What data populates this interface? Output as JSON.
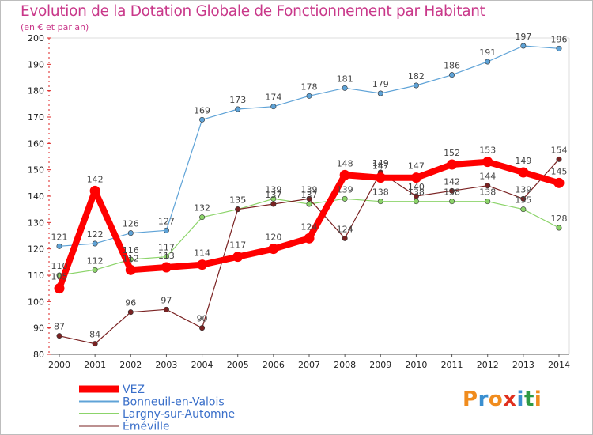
{
  "title": "Evolution de la Dotation Globale de Fonctionnement par Habitant",
  "subtitle": "(en € et par an)",
  "logo": {
    "text": "Proxiti",
    "colors": [
      "#f08c1e",
      "#3a8fd0",
      "#f08c1e",
      "#e0301e",
      "#3a8fd0",
      "#2f9a45",
      "#f08c1e"
    ]
  },
  "chart_data": {
    "type": "line",
    "title": "Evolution de la Dotation Globale de Fonctionnement par Habitant",
    "ylabel": "(en € et par an)",
    "xlabel": "",
    "ylim": [
      80,
      200
    ],
    "yticks": [
      80,
      90,
      100,
      110,
      120,
      130,
      140,
      150,
      160,
      170,
      180,
      190,
      200
    ],
    "categories": [
      "2000",
      "2001",
      "2002",
      "2003",
      "2004",
      "2005",
      "2006",
      "2007",
      "2008",
      "2009",
      "2010",
      "2011",
      "2012",
      "2013",
      "2014"
    ],
    "series": [
      {
        "name": "VEZ",
        "color": "#ff0000",
        "emphasis": true,
        "values": [
          105,
          142,
          112,
          113,
          114,
          117,
          120,
          124,
          148,
          147,
          147,
          152,
          153,
          149,
          145
        ]
      },
      {
        "name": "Bonneuil-en-Valois",
        "color": "#5fa3d7",
        "emphasis": false,
        "values": [
          121,
          122,
          126,
          127,
          169,
          173,
          174,
          178,
          181,
          179,
          182,
          186,
          191,
          197,
          196
        ]
      },
      {
        "name": "Largny-sur-Automne",
        "color": "#8cd46a",
        "emphasis": false,
        "values": [
          110,
          112,
          116,
          117,
          132,
          135,
          139,
          137,
          139,
          138,
          138,
          138,
          138,
          135,
          128
        ]
      },
      {
        "name": "Éméville",
        "color": "#7a2222",
        "emphasis": false,
        "values": [
          87,
          84,
          96,
          97,
          90,
          135,
          137,
          139,
          124,
          149,
          140,
          142,
          144,
          139,
          154
        ]
      }
    ],
    "legend_position": "bottom-left"
  }
}
